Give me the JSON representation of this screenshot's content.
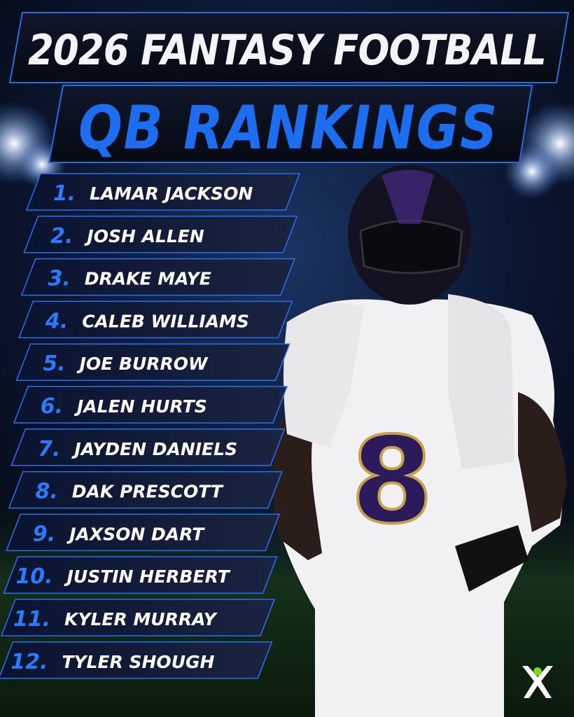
{
  "header": {
    "line1": "2026 FANTASY FOOTBALL",
    "line2": "QB RANKINGS"
  },
  "rankings": [
    {
      "rank": "1.",
      "name": "LAMAR JACKSON"
    },
    {
      "rank": "2.",
      "name": "JOSH ALLEN"
    },
    {
      "rank": "3.",
      "name": "DRAKE MAYE"
    },
    {
      "rank": "4.",
      "name": "CALEB WILLIAMS"
    },
    {
      "rank": "5.",
      "name": "JOE BURROW"
    },
    {
      "rank": "6.",
      "name": "JALEN HURTS"
    },
    {
      "rank": "7.",
      "name": "JAYDEN DANIELS"
    },
    {
      "rank": "8.",
      "name": "DAK PRESCOTT"
    },
    {
      "rank": "9.",
      "name": "JAXSON DART"
    },
    {
      "rank": "10.",
      "name": "JUSTIN HERBERT"
    },
    {
      "rank": "11.",
      "name": "KYLER MURRAY"
    },
    {
      "rank": "12.",
      "name": "TYLER SHOUGH"
    }
  ]
}
